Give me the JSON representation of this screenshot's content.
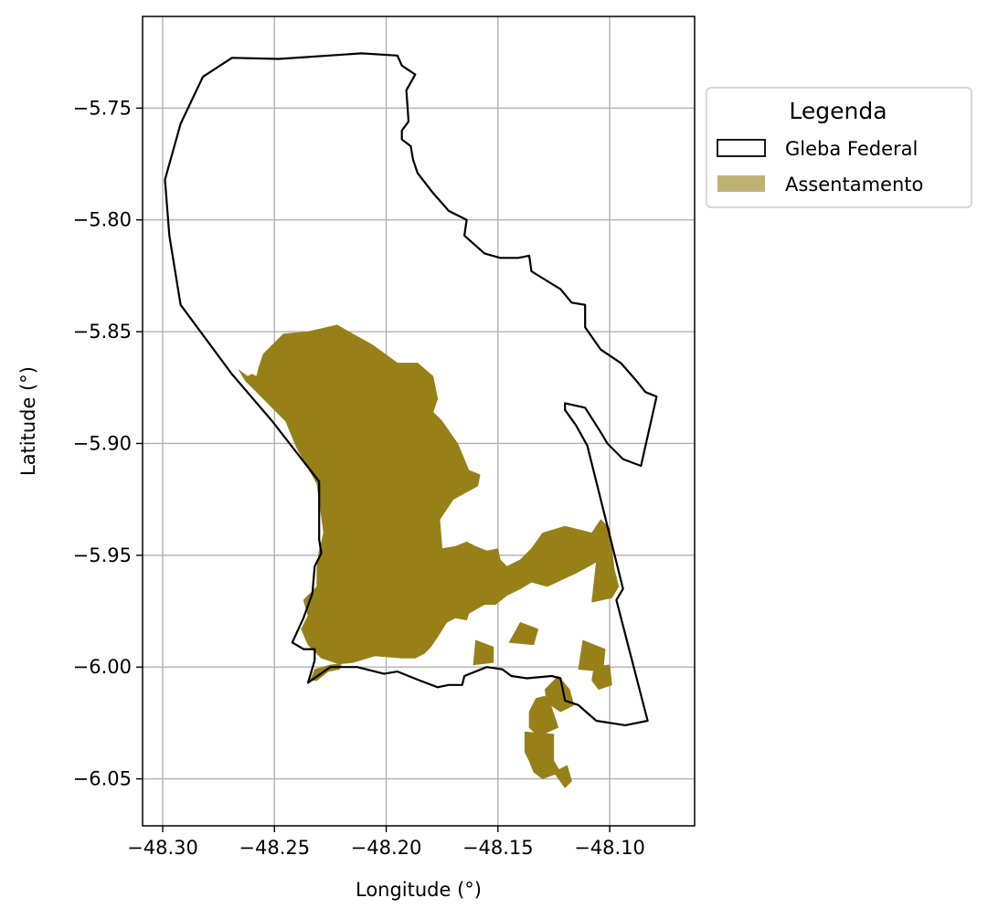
{
  "chart_data": {
    "type": "map",
    "xlabel": "Longitude (°)",
    "ylabel": "Latitude (°)",
    "xlim": [
      -48.309,
      -48.062
    ],
    "ylim": [
      -6.071,
      -5.709
    ],
    "grid": true,
    "x_ticks": [
      {
        "value": -48.3,
        "label": "−48.30"
      },
      {
        "value": -48.25,
        "label": "−48.25"
      },
      {
        "value": -48.2,
        "label": "−48.20"
      },
      {
        "value": -48.15,
        "label": "−48.15"
      },
      {
        "value": -48.1,
        "label": "−48.10"
      }
    ],
    "y_ticks": [
      {
        "value": -5.75,
        "label": "−5.75"
      },
      {
        "value": -5.8,
        "label": "−5.80"
      },
      {
        "value": -5.85,
        "label": "−5.85"
      },
      {
        "value": -5.9,
        "label": "−5.90"
      },
      {
        "value": -5.95,
        "label": "−5.95"
      },
      {
        "value": -6.0,
        "label": "−6.00"
      },
      {
        "value": -6.05,
        "label": "−6.05"
      }
    ],
    "legend": {
      "title": "Legenda",
      "placement": "outside-right-top",
      "entries": [
        {
          "label": "Gleba Federal",
          "style": "outline",
          "color": "#000000"
        },
        {
          "label": "Assentamento",
          "style": "fill",
          "color": "#bdb274"
        }
      ]
    },
    "colors": {
      "gleba_outline": "#000000",
      "assentamento_fill": "#978018",
      "grid": "#b0b0b0"
    },
    "layers": [
      {
        "name": "Gleba Federal",
        "kind": "outline",
        "polygons": [
          [
            [
              -48.269,
              -5.7275
            ],
            [
              -48.248,
              -5.728
            ],
            [
              -48.211,
              -5.7255
            ],
            [
              -48.195,
              -5.7265
            ],
            [
              -48.193,
              -5.731
            ],
            [
              -48.187,
              -5.735
            ],
            [
              -48.191,
              -5.742
            ],
            [
              -48.19,
              -5.756
            ],
            [
              -48.193,
              -5.76
            ],
            [
              -48.193,
              -5.764
            ],
            [
              -48.189,
              -5.767
            ],
            [
              -48.188,
              -5.773
            ],
            [
              -48.186,
              -5.779
            ],
            [
              -48.179,
              -5.788
            ],
            [
              -48.172,
              -5.796
            ],
            [
              -48.164,
              -5.8
            ],
            [
              -48.165,
              -5.807
            ],
            [
              -48.156,
              -5.815
            ],
            [
              -48.149,
              -5.817
            ],
            [
              -48.141,
              -5.817
            ],
            [
              -48.136,
              -5.816
            ],
            [
              -48.135,
              -5.823
            ],
            [
              -48.122,
              -5.831
            ],
            [
              -48.117,
              -5.837
            ],
            [
              -48.111,
              -5.838
            ],
            [
              -48.111,
              -5.848
            ],
            [
              -48.104,
              -5.858
            ],
            [
              -48.095,
              -5.864
            ],
            [
              -48.088,
              -5.872
            ],
            [
              -48.084,
              -5.877
            ],
            [
              -48.079,
              -5.879
            ],
            [
              -48.086,
              -5.91
            ],
            [
              -48.094,
              -5.907
            ],
            [
              -48.101,
              -5.9
            ],
            [
              -48.104,
              -5.895
            ],
            [
              -48.111,
              -5.884
            ],
            [
              -48.12,
              -5.882
            ],
            [
              -48.12,
              -5.885
            ],
            [
              -48.115,
              -5.892
            ],
            [
              -48.11,
              -5.901
            ],
            [
              -48.094,
              -5.965
            ],
            [
              -48.097,
              -5.97
            ],
            [
              -48.083,
              -6.024
            ],
            [
              -48.093,
              -6.026
            ],
            [
              -48.106,
              -6.024
            ],
            [
              -48.114,
              -6.017
            ],
            [
              -48.12,
              -6.015
            ],
            [
              -48.122,
              -6.005
            ],
            [
              -48.126,
              -6.004
            ],
            [
              -48.137,
              -6.005
            ],
            [
              -48.144,
              -6.004
            ],
            [
              -48.148,
              -6.001
            ],
            [
              -48.155,
              -6.0
            ],
            [
              -48.165,
              -6.004
            ],
            [
              -48.166,
              -6.008
            ],
            [
              -48.172,
              -6.008
            ],
            [
              -48.177,
              -6.009
            ],
            [
              -48.185,
              -6.006
            ],
            [
              -48.195,
              -6.002
            ],
            [
              -48.201,
              -6.003
            ],
            [
              -48.213,
              -6.0
            ],
            [
              -48.225,
              -6.0
            ],
            [
              -48.235,
              -6.007
            ],
            [
              -48.232,
              -5.997
            ],
            [
              -48.232,
              -5.992
            ],
            [
              -48.237,
              -5.992
            ],
            [
              -48.242,
              -5.989
            ],
            [
              -48.237,
              -5.978
            ],
            [
              -48.233,
              -5.967
            ],
            [
              -48.232,
              -5.955
            ],
            [
              -48.229,
              -5.949
            ],
            [
              -48.23,
              -5.943
            ],
            [
              -48.23,
              -5.917
            ],
            [
              -48.251,
              -5.89
            ],
            [
              -48.269,
              -5.869
            ],
            [
              -48.292,
              -5.838
            ],
            [
              -48.297,
              -5.807
            ],
            [
              -48.299,
              -5.782
            ],
            [
              -48.292,
              -5.757
            ],
            [
              -48.282,
              -5.736
            ],
            [
              -48.269,
              -5.7275
            ]
          ]
        ]
      },
      {
        "name": "Assentamento",
        "kind": "fill",
        "polygons": [
          [
            [
              -48.266,
              -5.867
            ],
            [
              -48.262,
              -5.87
            ],
            [
              -48.26,
              -5.869
            ],
            [
              -48.258,
              -5.87
            ],
            [
              -48.257,
              -5.866
            ],
            [
              -48.255,
              -5.86
            ],
            [
              -48.249,
              -5.854
            ],
            [
              -48.246,
              -5.851
            ],
            [
              -48.235,
              -5.85
            ],
            [
              -48.222,
              -5.847
            ],
            [
              -48.206,
              -5.856
            ],
            [
              -48.195,
              -5.864
            ],
            [
              -48.186,
              -5.864
            ],
            [
              -48.179,
              -5.87
            ],
            [
              -48.177,
              -5.88
            ],
            [
              -48.179,
              -5.886
            ],
            [
              -48.175,
              -5.89
            ],
            [
              -48.168,
              -5.9
            ],
            [
              -48.163,
              -5.912
            ],
            [
              -48.158,
              -5.914
            ],
            [
              -48.159,
              -5.919
            ],
            [
              -48.17,
              -5.925
            ],
            [
              -48.176,
              -5.934
            ],
            [
              -48.175,
              -5.947
            ],
            [
              -48.169,
              -5.946
            ],
            [
              -48.164,
              -5.944
            ],
            [
              -48.16,
              -5.946
            ],
            [
              -48.155,
              -5.948
            ],
            [
              -48.15,
              -5.947
            ],
            [
              -48.149,
              -5.952
            ],
            [
              -48.146,
              -5.955
            ],
            [
              -48.14,
              -5.952
            ],
            [
              -48.135,
              -5.947
            ],
            [
              -48.13,
              -5.94
            ],
            [
              -48.12,
              -5.937
            ],
            [
              -48.108,
              -5.94
            ],
            [
              -48.104,
              -5.934
            ],
            [
              -48.1,
              -5.938
            ],
            [
              -48.098,
              -5.956
            ],
            [
              -48.096,
              -5.964
            ],
            [
              -48.099,
              -5.969
            ],
            [
              -48.108,
              -5.971
            ],
            [
              -48.106,
              -5.953
            ],
            [
              -48.115,
              -5.958
            ],
            [
              -48.128,
              -5.964
            ],
            [
              -48.135,
              -5.962
            ],
            [
              -48.14,
              -5.965
            ],
            [
              -48.146,
              -5.968
            ],
            [
              -48.151,
              -5.972
            ],
            [
              -48.156,
              -5.972
            ],
            [
              -48.163,
              -5.976
            ],
            [
              -48.164,
              -5.979
            ],
            [
              -48.169,
              -5.978
            ],
            [
              -48.173,
              -5.98
            ],
            [
              -48.176,
              -5.985
            ],
            [
              -48.18,
              -5.991
            ],
            [
              -48.183,
              -5.994
            ],
            [
              -48.187,
              -5.996
            ],
            [
              -48.193,
              -5.996
            ],
            [
              -48.205,
              -5.995
            ],
            [
              -48.215,
              -5.998
            ],
            [
              -48.225,
              -5.999
            ],
            [
              -48.232,
              -6.001
            ],
            [
              -48.234,
              -6.006
            ],
            [
              -48.231,
              -6.006
            ],
            [
              -48.226,
              -6.002
            ],
            [
              -48.221,
              -6.001
            ],
            [
              -48.22,
              -5.999
            ],
            [
              -48.229,
              -5.996
            ],
            [
              -48.235,
              -5.99
            ],
            [
              -48.238,
              -5.983
            ],
            [
              -48.235,
              -5.977
            ],
            [
              -48.237,
              -5.97
            ],
            [
              -48.231,
              -5.964
            ],
            [
              -48.231,
              -5.956
            ],
            [
              -48.23,
              -5.948
            ],
            [
              -48.228,
              -5.94
            ],
            [
              -48.231,
              -5.918
            ],
            [
              -48.24,
              -5.902
            ],
            [
              -48.245,
              -5.89
            ],
            [
              -48.253,
              -5.882
            ],
            [
              -48.259,
              -5.876
            ],
            [
              -48.263,
              -5.872
            ],
            [
              -48.266,
              -5.867
            ]
          ],
          [
            [
              -48.202,
              -5.972
            ],
            [
              -48.19,
              -5.971
            ],
            [
              -48.19,
              -5.965
            ],
            [
              -48.198,
              -5.96
            ],
            [
              -48.202,
              -5.964
            ],
            [
              -48.202,
              -5.972
            ]
          ],
          [
            [
              -48.161,
              -5.999
            ],
            [
              -48.152,
              -5.998
            ],
            [
              -48.152,
              -5.991
            ],
            [
              -48.16,
              -5.988
            ],
            [
              -48.161,
              -5.999
            ]
          ],
          [
            [
              -48.145,
              -5.989
            ],
            [
              -48.134,
              -5.99
            ],
            [
              -48.132,
              -5.983
            ],
            [
              -48.14,
              -5.98
            ],
            [
              -48.145,
              -5.989
            ]
          ],
          [
            [
              -48.114,
              -6.001
            ],
            [
              -48.103,
              -6.002
            ],
            [
              -48.102,
              -5.992
            ],
            [
              -48.112,
              -5.988
            ],
            [
              -48.114,
              -6.001
            ]
          ],
          [
            [
              -48.133,
              -6.014
            ],
            [
              -48.129,
              -6.013
            ],
            [
              -48.126,
              -6.018
            ],
            [
              -48.123,
              -6.027
            ],
            [
              -48.132,
              -6.031
            ],
            [
              -48.136,
              -6.027
            ],
            [
              -48.136,
              -6.02
            ],
            [
              -48.133,
              -6.014
            ]
          ],
          [
            [
              -48.138,
              -6.029
            ],
            [
              -48.125,
              -6.03
            ],
            [
              -48.125,
              -6.042
            ],
            [
              -48.122,
              -6.047
            ],
            [
              -48.13,
              -6.05
            ],
            [
              -48.134,
              -6.047
            ],
            [
              -48.136,
              -6.042
            ],
            [
              -48.138,
              -6.038
            ],
            [
              -48.138,
              -6.029
            ]
          ],
          [
            [
              -48.123,
              -6.004
            ],
            [
              -48.118,
              -6.01
            ],
            [
              -48.116,
              -6.017
            ],
            [
              -48.122,
              -6.02
            ],
            [
              -48.128,
              -6.016
            ],
            [
              -48.129,
              -6.01
            ],
            [
              -48.123,
              -6.004
            ]
          ],
          [
            [
              -48.107,
              -6.0
            ],
            [
              -48.1,
              -5.999
            ],
            [
              -48.099,
              -6.008
            ],
            [
              -48.105,
              -6.01
            ],
            [
              -48.108,
              -6.006
            ],
            [
              -48.107,
              -6.0
            ]
          ],
          [
            [
              -48.125,
              -6.047
            ],
            [
              -48.12,
              -6.054
            ],
            [
              -48.117,
              -6.051
            ],
            [
              -48.119,
              -6.044
            ],
            [
              -48.125,
              -6.047
            ]
          ]
        ]
      }
    ]
  }
}
